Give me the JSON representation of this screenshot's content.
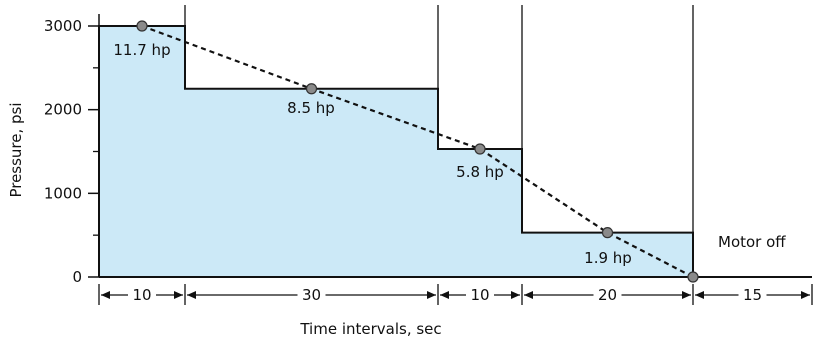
{
  "chart_data": {
    "type": "area",
    "ylabel": "Pressure, psi",
    "xlabel": "Time intervals, sec",
    "ylim": [
      0,
      3000
    ],
    "y_ticks": [
      {
        "value": 0,
        "label": "0"
      },
      {
        "value": 1000,
        "label": "1000"
      },
      {
        "value": 2000,
        "label": "2000"
      },
      {
        "value": 3000,
        "label": "3000"
      }
    ],
    "y_minor_ticks": [
      500,
      1500,
      2500
    ],
    "x_range": [
      0,
      85
    ],
    "steps": [
      {
        "start": 0,
        "duration": 10,
        "duration_label": "10",
        "pressure": 3000,
        "power_label": "11.7 hp"
      },
      {
        "start": 10,
        "duration": 30,
        "duration_label": "30",
        "pressure": 2250,
        "power_label": "8.5 hp"
      },
      {
        "start": 40,
        "duration": 10,
        "duration_label": "10",
        "pressure": 1530,
        "power_label": "5.8 hp"
      },
      {
        "start": 50,
        "duration": 20,
        "duration_label": "20",
        "pressure": 530,
        "power_label": "1.9 hp"
      },
      {
        "start": 70,
        "duration": 15,
        "duration_label": "15",
        "pressure": 0,
        "power_label": ""
      }
    ],
    "trend_points": [
      {
        "x": 5,
        "y": 3000
      },
      {
        "x": 25,
        "y": 2250
      },
      {
        "x": 45,
        "y": 1530
      },
      {
        "x": 60,
        "y": 530
      },
      {
        "x": 70,
        "y": 0
      }
    ],
    "annotations": [
      "Motor off"
    ],
    "grid": false,
    "colors": {
      "fill": "#cce9f7",
      "line": "#111111",
      "marker": "#8a8a8a"
    }
  }
}
